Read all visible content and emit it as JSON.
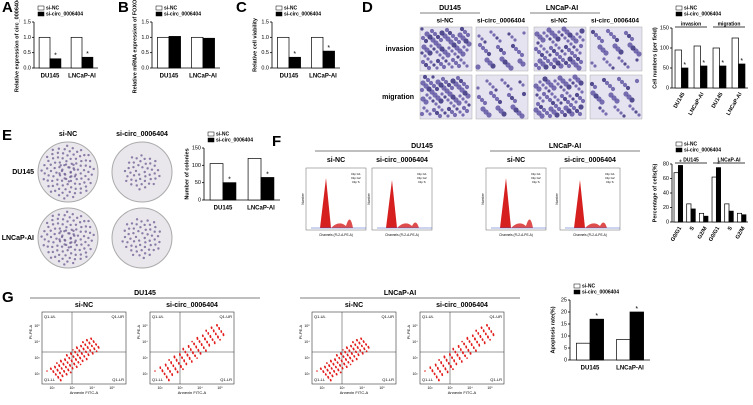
{
  "figure": {
    "panels": [
      "A",
      "B",
      "C",
      "D",
      "E",
      "F",
      "G"
    ],
    "D": {
      "cell_lines": [
        "DU145",
        "LNCaP-AI"
      ],
      "conditions": [
        "si-NC",
        "si-circ_0006404"
      ],
      "assays": [
        "invasion",
        "migration"
      ]
    },
    "E": {
      "cell_lines": [
        "DU145",
        "LNCaP-AI"
      ],
      "conditions": [
        "si-NC",
        "si-circ_0006404"
      ]
    },
    "F": {
      "cell_lines": [
        "DU145",
        "LNCaP-AI"
      ],
      "conditions": [
        "si-NC",
        "si-circ_0006404"
      ],
      "histogram": {
        "legend": [
          "Dip G1",
          "Dip G2",
          "Dip S"
        ],
        "x_label": "Channels (FL2-A-PE-A)",
        "y_label": "Number"
      }
    },
    "G": {
      "cell_lines": [
        "DU145",
        "LNCaP-AI"
      ],
      "conditions": [
        "si-NC",
        "si-circ_0006404"
      ],
      "quadrants": [
        "Q1-UL",
        "Q1-UR",
        "Q1-LL",
        "Q1-LR"
      ],
      "x_label": "Annexin FITC-A",
      "y_label": "PI-PE-A",
      "ticks": [
        "10²",
        "10³",
        "10⁴",
        "10⁵"
      ]
    }
  },
  "chart_data": [
    {
      "type": "bar",
      "y_label": "Relative expression of circ_0006404",
      "categories": [
        "DU145",
        "LNCaP-AI"
      ],
      "series": [
        {
          "name": "si-NC",
          "color": "#ffffff",
          "values": [
            1.0,
            1.0
          ]
        },
        {
          "name": "si-circ_0006404",
          "color": "#000000",
          "values": [
            0.3,
            0.35
          ],
          "significance": [
            "*",
            "*"
          ]
        }
      ],
      "ylim": [
        0,
        1.5
      ],
      "yticks": [
        {
          "value": 0,
          "label": "0.0"
        },
        0.5,
        {
          "value": 1,
          "label": "1.0"
        },
        1.5
      ]
    },
    {
      "type": "bar",
      "y_label": "Relative mRNA expression of FOXO3",
      "categories": [
        "DU145",
        "LNCaP-AI"
      ],
      "series": [
        {
          "name": "si-NC",
          "color": "#ffffff",
          "values": [
            1.0,
            1.0
          ]
        },
        {
          "name": "si-circ_0006404",
          "color": "#000000",
          "values": [
            1.03,
            0.97
          ]
        }
      ],
      "ylim": [
        0,
        1.5
      ],
      "yticks": [
        {
          "value": 0,
          "label": "0.0"
        },
        0.5,
        {
          "value": 1,
          "label": "1.0"
        },
        1.5
      ]
    },
    {
      "type": "bar",
      "y_label": "Relative cell viability",
      "categories": [
        "DU145",
        "LNCaP-AI"
      ],
      "series": [
        {
          "name": "si-NC",
          "color": "#ffffff",
          "values": [
            1.0,
            1.0
          ]
        },
        {
          "name": "si-circ_0006404",
          "color": "#000000",
          "values": [
            0.35,
            0.55
          ],
          "significance": [
            "*",
            "*"
          ]
        }
      ],
      "ylim": [
        0,
        1.5
      ],
      "yticks": [
        {
          "value": 0,
          "label": "0.0"
        },
        0.5,
        {
          "value": 1,
          "label": "1.0"
        },
        1.5
      ]
    },
    {
      "type": "bar",
      "y_label": "Cell numbers (per field)",
      "categories": [
        "DU145",
        "LNCaP-AI",
        "DU145",
        "LNCaP-AI"
      ],
      "groups": [
        "invasion",
        "migration"
      ],
      "series": [
        {
          "name": "si-NC",
          "color": "#ffffff",
          "values": [
            95,
            105,
            100,
            125
          ]
        },
        {
          "name": "si-circ_0006404",
          "color": "#000000",
          "values": [
            50,
            55,
            55,
            60
          ],
          "significance": [
            "*",
            "*",
            "*",
            "*"
          ]
        }
      ],
      "ylim": [
        0,
        150
      ],
      "yticks": [
        0,
        50,
        100,
        150
      ]
    },
    {
      "type": "bar",
      "y_label": "Number of colonies",
      "categories": [
        "DU145",
        "LNCaP-AI"
      ],
      "series": [
        {
          "name": "si-NC",
          "color": "#ffffff",
          "values": [
            105,
            120
          ]
        },
        {
          "name": "si-circ_0006404",
          "color": "#000000",
          "values": [
            50,
            65
          ],
          "significance": [
            "*",
            "*"
          ]
        }
      ],
      "ylim": [
        0,
        150
      ],
      "yticks": [
        0,
        50,
        100,
        150
      ]
    },
    {
      "type": "bar",
      "y_label": "Percentage of cells(%)",
      "categories": [
        "G0/G1",
        "S",
        "G2/M",
        "G0/G1",
        "S",
        "G2/M"
      ],
      "groups": [
        "DU145",
        "LNCaP-AI"
      ],
      "series": [
        {
          "name": "si-NC",
          "color": "#ffffff",
          "values": [
            68,
            25,
            12,
            62,
            25,
            12
          ]
        },
        {
          "name": "si-circ_0006404",
          "color": "#000000",
          "values": [
            78,
            18,
            8,
            75,
            15,
            10
          ],
          "significance": [
            "*",
            null,
            null,
            "*",
            null,
            null
          ]
        }
      ],
      "ylim": [
        0,
        80
      ],
      "yticks": [
        0,
        20,
        40,
        60,
        80
      ]
    },
    {
      "type": "bar",
      "y_label": "Apoptosis rate(%)",
      "categories": [
        "DU145",
        "LNCaP-AI"
      ],
      "series": [
        {
          "name": "si-NC",
          "color": "#ffffff",
          "values": [
            7,
            8.5
          ]
        },
        {
          "name": "si-circ_0006404",
          "color": "#000000",
          "values": [
            17,
            20
          ],
          "significance": [
            "*",
            "*"
          ]
        }
      ],
      "ylim": [
        0,
        25
      ],
      "yticks": [
        0,
        5,
        10,
        15,
        20,
        25
      ]
    }
  ]
}
